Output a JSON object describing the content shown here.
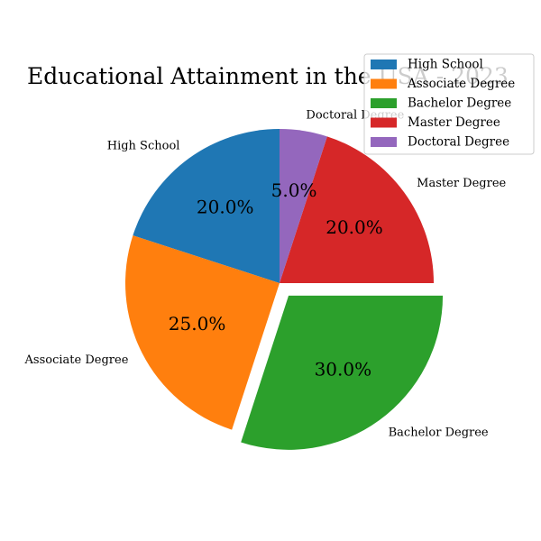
{
  "chart_data": {
    "type": "pie",
    "title": "Educational Attainment in the USA - 2023",
    "categories": [
      "High School",
      "Associate Degree",
      "Bachelor Degree",
      "Master Degree",
      "Doctoral Degree"
    ],
    "values": [
      20,
      25,
      30,
      20,
      5
    ],
    "value_labels": [
      "20.0%",
      "25.0%",
      "30.0%",
      "20.0%",
      "5.0%"
    ],
    "colors": [
      "#1f77b4",
      "#ff7f0e",
      "#2ca02c",
      "#d62728",
      "#9467bd"
    ],
    "explode": [
      0,
      0,
      0.1,
      0,
      0
    ],
    "start_angle_deg": 90,
    "direction": "counterclockwise",
    "legend": {
      "placement": "top-right",
      "entries": [
        "High School",
        "Associate Degree",
        "Bachelor Degree",
        "Master Degree",
        "Doctoral Degree"
      ]
    }
  }
}
